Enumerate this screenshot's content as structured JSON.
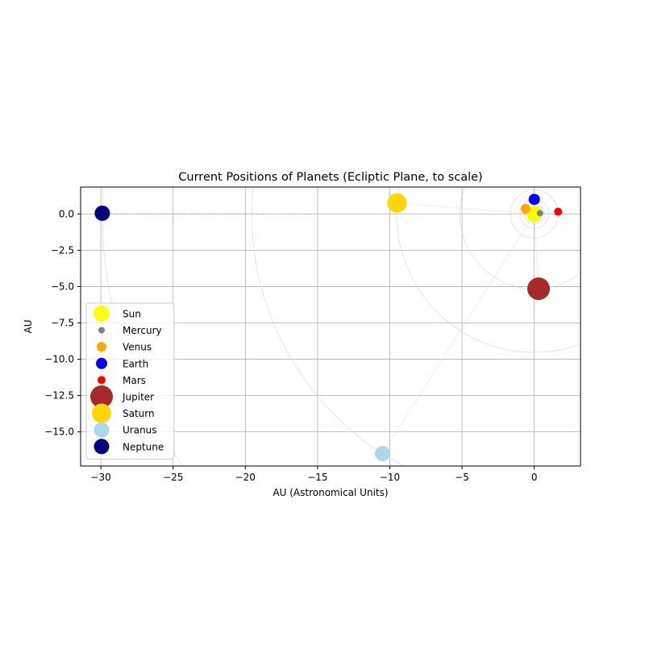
{
  "chart_data": {
    "type": "scatter",
    "title": "Current Positions of Planets (Ecliptic Plane, to scale)",
    "xlabel": "AU (Astronomical Units)",
    "ylabel": "AU",
    "xlim": [
      -31.4,
      3.2
    ],
    "ylim": [
      -17.35,
      1.85
    ],
    "grid": true,
    "legend_position": "lower-left",
    "x_ticks": [
      {
        "value": -30,
        "label": "−30"
      },
      {
        "value": -25,
        "label": "−25"
      },
      {
        "value": -20,
        "label": "−20"
      },
      {
        "value": -15,
        "label": "−15"
      },
      {
        "value": -10,
        "label": "−10"
      },
      {
        "value": -5,
        "label": "−5"
      },
      {
        "value": 0,
        "label": "0"
      }
    ],
    "y_ticks": [
      {
        "value": 0,
        "label": "0.0"
      },
      {
        "value": -2.5,
        "label": "−2.5"
      },
      {
        "value": -5,
        "label": "−5.0"
      },
      {
        "value": -7.5,
        "label": "−7.5"
      },
      {
        "value": -10,
        "label": "−10.0"
      },
      {
        "value": -12.5,
        "label": "−12.5"
      },
      {
        "value": -15,
        "label": "−15.0"
      }
    ],
    "series": [
      {
        "name": "Sun",
        "x": 0.0,
        "y": 0.0,
        "color": "#ffff00"
      },
      {
        "name": "Mercury",
        "x": 0.4,
        "y": 0.05,
        "color": "#808080"
      },
      {
        "name": "Venus",
        "x": -0.6,
        "y": 0.35,
        "color": "#ffa500"
      },
      {
        "name": "Earth",
        "x": 0.0,
        "y": 1.0,
        "color": "#0000ff"
      },
      {
        "name": "Mars",
        "x": 1.65,
        "y": 0.15,
        "color": "#ff0000"
      },
      {
        "name": "Jupiter",
        "x": 0.3,
        "y": -5.15,
        "color": "#a52a2a"
      },
      {
        "name": "Saturn",
        "x": -9.5,
        "y": 0.75,
        "color": "#ffd700"
      },
      {
        "name": "Uranus",
        "x": -10.5,
        "y": -16.5,
        "color": "#add8e6"
      },
      {
        "name": "Neptune",
        "x": -29.9,
        "y": 0.05,
        "color": "#000080"
      }
    ]
  }
}
